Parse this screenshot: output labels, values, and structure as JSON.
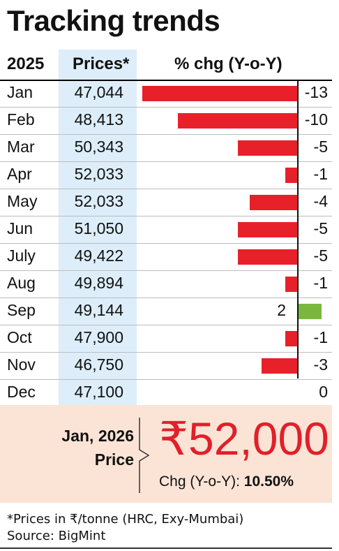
{
  "title": "Tracking trends",
  "headers": {
    "year": "2025",
    "price": "Prices*",
    "change": "% chg (Y-o-Y)"
  },
  "colors": {
    "negative": "#e8202a",
    "positive": "#79b83c",
    "price_column": "#ddeefa",
    "summary_background": "#fbe4d6",
    "highlight_text": "#e0202a"
  },
  "chart_data": {
    "type": "bar",
    "orientation": "horizontal",
    "categories": [
      "Jan",
      "Feb",
      "Mar",
      "Apr",
      "May",
      "Jun",
      "July",
      "Aug",
      "Sep",
      "Oct",
      "Nov",
      "Dec"
    ],
    "prices": [
      "47,044",
      "48,413",
      "50,343",
      "52,033",
      "52,033",
      "51,050",
      "49,422",
      "49,894",
      "49,144",
      "47,900",
      "46,750",
      "47,100"
    ],
    "values": [
      -13,
      -10,
      -5,
      -1,
      -4,
      -5,
      -5,
      -1,
      2,
      -1,
      -3,
      0
    ],
    "value_labels": [
      "-13",
      "-10",
      "-5",
      "-1",
      "-4",
      "-5",
      "-5",
      "-1",
      "2",
      "-1",
      "-3",
      "0"
    ],
    "xlim": [
      -13,
      2
    ],
    "grid": false,
    "legend": "none"
  },
  "summary": {
    "label_line1": "Jan, 2026",
    "label_line2": "Price",
    "value": "₹52,000",
    "change_label": "Chg (Y-o-Y):",
    "change_value": "10.50%"
  },
  "footnote": {
    "note": "*Prices in ₹/tonne (HRC, Exy-Mumbai)",
    "source": "Source: BigMint"
  }
}
